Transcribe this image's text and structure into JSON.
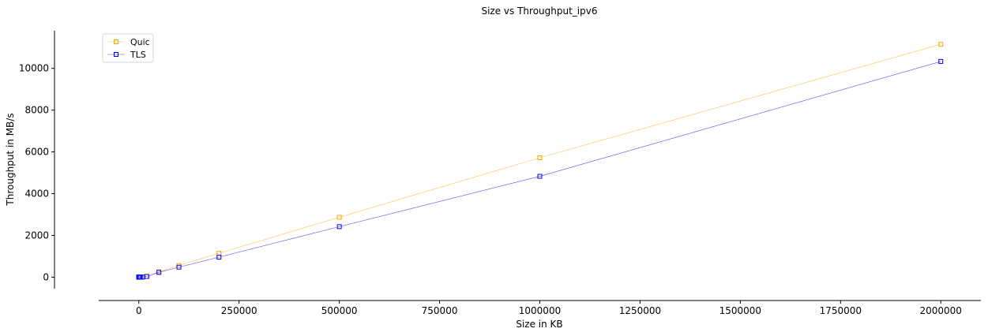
{
  "chart_data": {
    "type": "line",
    "title": "Size vs Throughput_ipv6",
    "xlabel": "Size in KB",
    "ylabel": "Throughput in MB/s",
    "xlim": [
      -100000,
      2100000
    ],
    "ylim": [
      -550,
      11800
    ],
    "xticks": [
      0,
      250000,
      500000,
      750000,
      1000000,
      1250000,
      1500000,
      1750000,
      2000000
    ],
    "yticks": [
      0,
      2000,
      4000,
      6000,
      8000,
      10000
    ],
    "grid": false,
    "legend_position": "top-left",
    "x": [
      1,
      2,
      5,
      10,
      20,
      50,
      100,
      200,
      500,
      1000,
      2000,
      5000,
      10000,
      20000,
      50000,
      100000,
      200000,
      500000,
      1000000,
      2000000
    ],
    "series": [
      {
        "name": "Quic",
        "color": "#ffa500",
        "values": [
          0,
          0,
          0,
          0,
          0,
          0,
          0,
          0,
          1,
          1,
          2,
          5,
          10,
          40,
          260,
          560,
          1150,
          2870,
          5720,
          11150
        ]
      },
      {
        "name": "TLS",
        "color": "#0000ff",
        "values": [
          0,
          0,
          0,
          0,
          0,
          0,
          0,
          0,
          1,
          1,
          2,
          4,
          9,
          35,
          230,
          480,
          960,
          2420,
          4830,
          10330
        ]
      }
    ]
  }
}
